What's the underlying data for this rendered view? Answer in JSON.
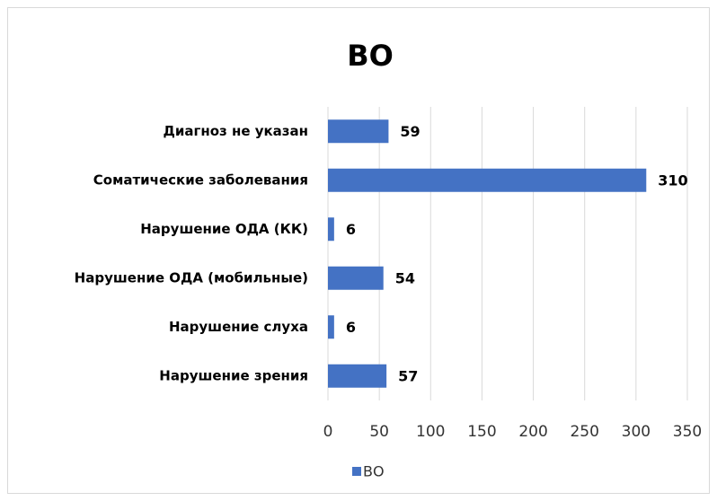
{
  "chart_data": {
    "type": "barh",
    "title": "ВО",
    "categories": [
      "Диагноз не указан",
      "Соматические заболевания",
      "Нарушение ОДА (КК)",
      "Нарушение ОДА (мобильные)",
      "Нарушение слуха",
      "Нарушение зрения"
    ],
    "series": [
      {
        "name": "ВО",
        "color": "#4472c4",
        "values": [
          59,
          310,
          6,
          54,
          6,
          57
        ]
      }
    ],
    "xlim": [
      0,
      350
    ],
    "xticks": [
      0,
      50,
      100,
      150,
      200,
      250,
      300,
      350
    ],
    "grid": true,
    "legend": "bottom"
  }
}
